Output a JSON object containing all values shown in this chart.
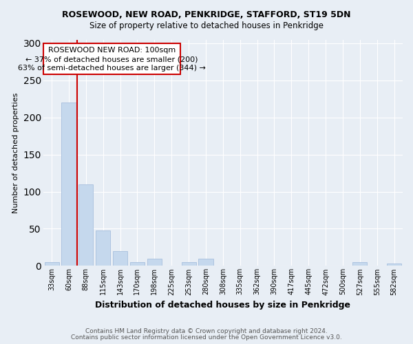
{
  "title": "ROSEWOOD, NEW ROAD, PENKRIDGE, STAFFORD, ST19 5DN",
  "subtitle": "Size of property relative to detached houses in Penkridge",
  "xlabel": "Distribution of detached houses by size in Penkridge",
  "ylabel": "Number of detached properties",
  "bar_color": "#c5d8ed",
  "bar_edge_color": "#adc4e0",
  "background_color": "#e8eef5",
  "grid_color": "#ffffff",
  "annotation_line_color": "#cc0000",
  "categories": [
    "33sqm",
    "60sqm",
    "88sqm",
    "115sqm",
    "143sqm",
    "170sqm",
    "198sqm",
    "225sqm",
    "253sqm",
    "280sqm",
    "308sqm",
    "335sqm",
    "362sqm",
    "390sqm",
    "417sqm",
    "445sqm",
    "472sqm",
    "500sqm",
    "527sqm",
    "555sqm",
    "582sqm"
  ],
  "values": [
    5,
    220,
    110,
    48,
    20,
    5,
    10,
    0,
    5,
    10,
    0,
    0,
    0,
    0,
    0,
    0,
    0,
    0,
    5,
    0,
    3
  ],
  "ylim": [
    0,
    305
  ],
  "yticks": [
    0,
    50,
    100,
    150,
    200,
    250,
    300
  ],
  "red_line_x": 1.5,
  "annotation_text_line1": "ROSEWOOD NEW ROAD: 100sqm",
  "annotation_text_line2": "← 37% of detached houses are smaller (200)",
  "annotation_text_line3": "63% of semi-detached houses are larger (344) →",
  "footnote_line1": "Contains HM Land Registry data © Crown copyright and database right 2024.",
  "footnote_line2": "Contains public sector information licensed under the Open Government Licence v3.0."
}
